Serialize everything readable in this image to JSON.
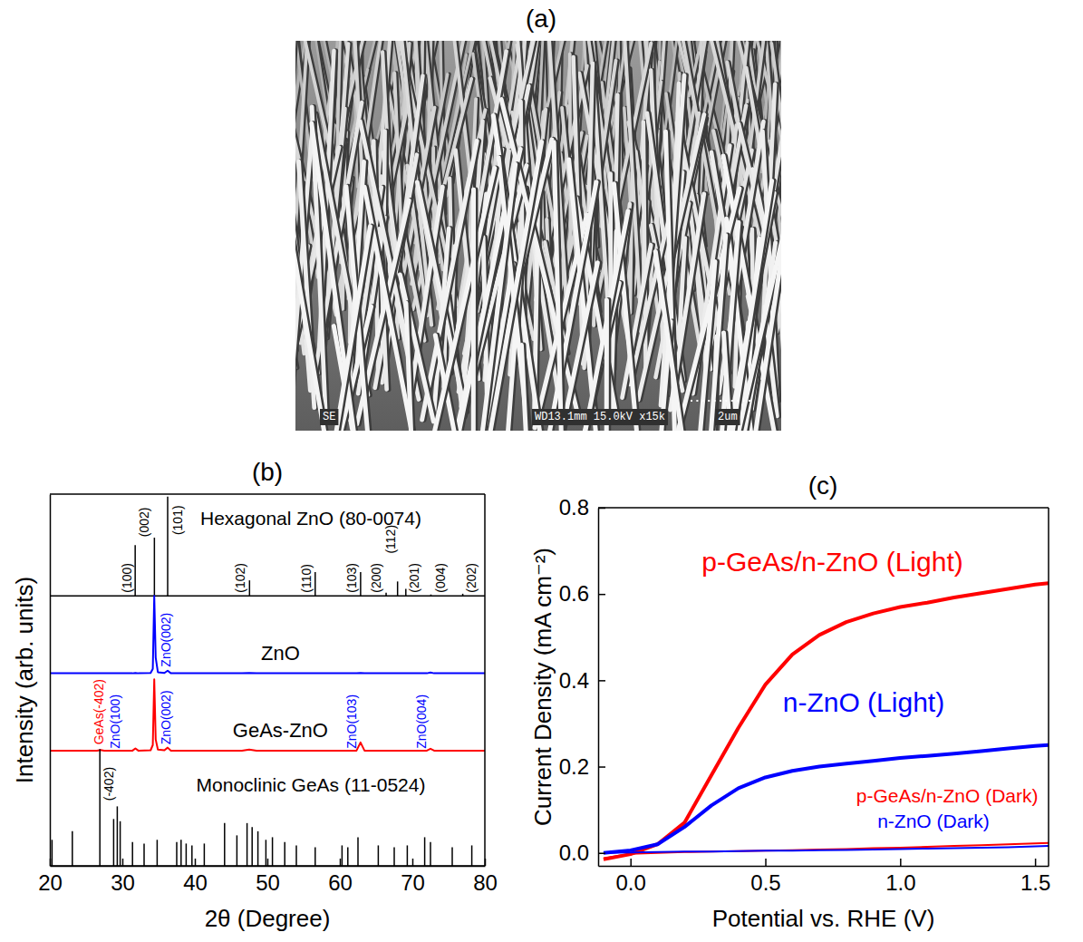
{
  "image_panel": {
    "label": "(a)",
    "image_texts": [
      "SE",
      "WD13.1mm 15.0kV x15k",
      "2um"
    ]
  },
  "chart_data": [
    {
      "label": "(b)",
      "type": "line",
      "x_label": "2θ (Degree)",
      "y_label": "Intensity (arb. units)",
      "xlim": [
        20,
        80
      ],
      "xticks": [
        20,
        30,
        40,
        50,
        60,
        70,
        80
      ],
      "ylim": [
        0,
        100
      ],
      "yticks": [],
      "tick_labels": "x",
      "series": [
        {
          "name": "Hexagonal ZnO (80-0074)",
          "type": "stick",
          "color": "#000000",
          "baseline": 72.6,
          "x": [
            31.77,
            34.42,
            36.25,
            47.54,
            56.6,
            62.86,
            66.38,
            67.96,
            69.1,
            72.56,
            76.95
          ],
          "values": [
            86.3,
            88.3,
            99.3,
            76.8,
            79,
            79,
            73.5,
            76.5,
            74.5,
            73,
            73.2
          ]
        },
        {
          "name": "ZnO",
          "type": "line",
          "color": "#0000ff",
          "x": [
            20,
            26.5,
            27.0,
            27.5,
            29.5,
            30.0,
            31.4,
            31.8,
            32.2,
            33.9,
            34.2,
            34.4,
            34.6,
            34.9,
            35.8,
            36.25,
            36.7,
            46.5,
            47.5,
            48.5,
            62.3,
            62.85,
            63.4,
            72.0,
            72.5,
            73.0,
            80
          ],
          "values": [
            51.8,
            51.8,
            51.8,
            51.8,
            51.8,
            51.8,
            51.8,
            51.9,
            51.8,
            51.9,
            53.0,
            72.6,
            56.0,
            52.1,
            51.9,
            52.5,
            51.8,
            51.8,
            51.9,
            51.8,
            51.8,
            51.9,
            51.8,
            51.8,
            52.0,
            51.8,
            51.8
          ]
        },
        {
          "name": "GeAs-ZnO",
          "type": "line",
          "color": "#ff0000",
          "x": [
            20,
            26.5,
            27.0,
            27.5,
            29.5,
            30.0,
            31.4,
            31.8,
            32.2,
            33.9,
            34.2,
            34.4,
            34.6,
            34.9,
            35.8,
            36.25,
            36.7,
            46.5,
            47.5,
            48.5,
            62.3,
            62.85,
            63.4,
            72.0,
            72.5,
            73.0,
            80
          ],
          "values": [
            31,
            31,
            31.15,
            31,
            31,
            31,
            31,
            31.6,
            31,
            31.1,
            32.5,
            50.2,
            34.0,
            31.3,
            31.1,
            31.8,
            31,
            31,
            31.3,
            31,
            31,
            33.2,
            31,
            31,
            31.5,
            31,
            31
          ]
        },
        {
          "name": "Monoclinic GeAs (11-0524)",
          "type": "stick",
          "color": "#000000",
          "baseline": 0,
          "x": [
            20.3,
            23.1,
            26.9,
            28.8,
            29.3,
            29.7,
            31.4,
            33.0,
            34.8,
            37.5,
            38.1,
            38.8,
            39.6,
            41.3,
            44.1,
            45.8,
            47.2,
            47.9,
            48.7,
            49.8,
            50.7,
            52.4,
            54.0,
            56.6,
            60.3,
            61.1,
            62.5,
            65.3,
            67.5,
            69.3,
            71.7,
            72.5,
            75.5,
            78.2
          ],
          "values": [
            7,
            9.3,
            31.4,
            12.6,
            16,
            12,
            6.4,
            6,
            7,
            6.4,
            7,
            6,
            5.5,
            6,
            11.5,
            8.2,
            11.5,
            10.4,
            9.3,
            7,
            7.7,
            6.4,
            5.5,
            5,
            5.5,
            5,
            7.7,
            5.5,
            5,
            5.5,
            7.7,
            6.4,
            5,
            5.5
          ]
        }
      ],
      "annotations": [
        {
          "text": "(100)",
          "x": 30.6,
          "y": 73.5,
          "color": "#000000"
        },
        {
          "text": "(002)",
          "x": 33.0,
          "y": 88.5,
          "color": "#000000"
        },
        {
          "text": "(101)",
          "x": 37.6,
          "y": 89,
          "color": "#000000"
        },
        {
          "text": "(102)",
          "x": 46.3,
          "y": 73.5,
          "color": "#000000"
        },
        {
          "text": "(110)",
          "x": 55.4,
          "y": 73.5,
          "color": "#000000"
        },
        {
          "text": "(103)",
          "x": 61.6,
          "y": 73.5,
          "color": "#000000"
        },
        {
          "text": "(200)",
          "x": 65.0,
          "y": 73.5,
          "color": "#000000"
        },
        {
          "text": "(112)",
          "x": 67.0,
          "y": 84,
          "color": "#000000"
        },
        {
          "text": "(201)",
          "x": 70.2,
          "y": 73.5,
          "color": "#000000"
        },
        {
          "text": "(004)",
          "x": 73.9,
          "y": 73.5,
          "color": "#000000"
        },
        {
          "text": "(202)",
          "x": 78.1,
          "y": 73.5,
          "color": "#000000"
        },
        {
          "text": "ZnO(002)",
          "x": 36.0,
          "y": 53.5,
          "color": "#0000ff"
        },
        {
          "text": "GeAs(-402)",
          "x": 26.7,
          "y": 32.6,
          "color": "#ff0000"
        },
        {
          "text": "ZnO(100)",
          "x": 29.0,
          "y": 31.5,
          "color": "#0000ff"
        },
        {
          "text": "ZnO(002)",
          "x": 36.0,
          "y": 32.6,
          "color": "#0000ff"
        },
        {
          "text": "ZnO(103)",
          "x": 61.6,
          "y": 31.5,
          "color": "#0000ff"
        },
        {
          "text": "ZnO(004)",
          "x": 71.2,
          "y": 31.5,
          "color": "#0000ff"
        },
        {
          "text": "(-402)",
          "x": 28.1,
          "y": 17.5,
          "color": "#000000"
        }
      ]
    },
    {
      "label": "(c)",
      "type": "line",
      "x_label": "Potential vs. RHE (V)",
      "y_label": "Current Density (mA cm⁻²)",
      "xlim": [
        -0.12,
        1.55
      ],
      "xticks": [
        {
          "value": 0,
          "label": "0.0"
        },
        0.5,
        {
          "value": 1,
          "label": "1.0"
        },
        1.5
      ],
      "ylim": [
        -0.03,
        0.8
      ],
      "yticks": [
        {
          "value": 0,
          "label": "0.0"
        },
        0.2,
        0.4,
        0.6,
        0.8
      ],
      "series": [
        {
          "name": "p-GeAs/n-ZnO (Light)",
          "color": "#ff0000",
          "x": [
            -0.1,
            0,
            0.1,
            0.2,
            0.3,
            0.4,
            0.5,
            0.6,
            0.7,
            0.8,
            0.9,
            1.0,
            1.1,
            1.2,
            1.3,
            1.4,
            1.5,
            1.55
          ],
          "values": [
            -0.015,
            -0.003,
            0.02,
            0.07,
            0.18,
            0.29,
            0.39,
            0.46,
            0.505,
            0.535,
            0.555,
            0.57,
            0.58,
            0.592,
            0.602,
            0.612,
            0.622,
            0.625
          ]
        },
        {
          "name": "n-ZnO (Light)",
          "color": "#0000ff",
          "x": [
            -0.1,
            0,
            0.1,
            0.2,
            0.3,
            0.4,
            0.5,
            0.6,
            0.7,
            0.8,
            0.9,
            1.0,
            1.1,
            1.2,
            1.3,
            1.4,
            1.5,
            1.55
          ],
          "values": [
            0.0,
            0.006,
            0.02,
            0.06,
            0.11,
            0.15,
            0.175,
            0.19,
            0.2,
            0.207,
            0.213,
            0.22,
            0.225,
            0.23,
            0.236,
            0.242,
            0.248,
            0.25
          ]
        },
        {
          "name": "p-GeAs/n-ZnO (Dark)",
          "color": "#ff0000",
          "x": [
            -0.1,
            0,
            0.1,
            0.2,
            0.3,
            0.4,
            0.5,
            0.6,
            0.7,
            0.8,
            0.9,
            1.0,
            1.1,
            1.2,
            1.3,
            1.4,
            1.5,
            1.55
          ],
          "values": [
            -0.012,
            -0.002,
            0.0,
            0.002,
            0.003,
            0.004,
            0.005,
            0.006,
            0.008,
            0.009,
            0.011,
            0.012,
            0.014,
            0.016,
            0.018,
            0.02,
            0.022,
            0.023
          ]
        },
        {
          "name": "n-ZnO (Dark)",
          "color": "#0000ff",
          "x": [
            -0.1,
            0,
            0.1,
            0.2,
            0.3,
            0.4,
            0.5,
            0.6,
            0.7,
            0.8,
            0.9,
            1.0,
            1.1,
            1.2,
            1.3,
            1.4,
            1.5,
            1.55
          ],
          "values": [
            0.0,
            0.001,
            0.002,
            0.003,
            0.003,
            0.004,
            0.005,
            0.005,
            0.006,
            0.007,
            0.008,
            0.009,
            0.01,
            0.011,
            0.012,
            0.013,
            0.015,
            0.016
          ]
        }
      ]
    }
  ]
}
